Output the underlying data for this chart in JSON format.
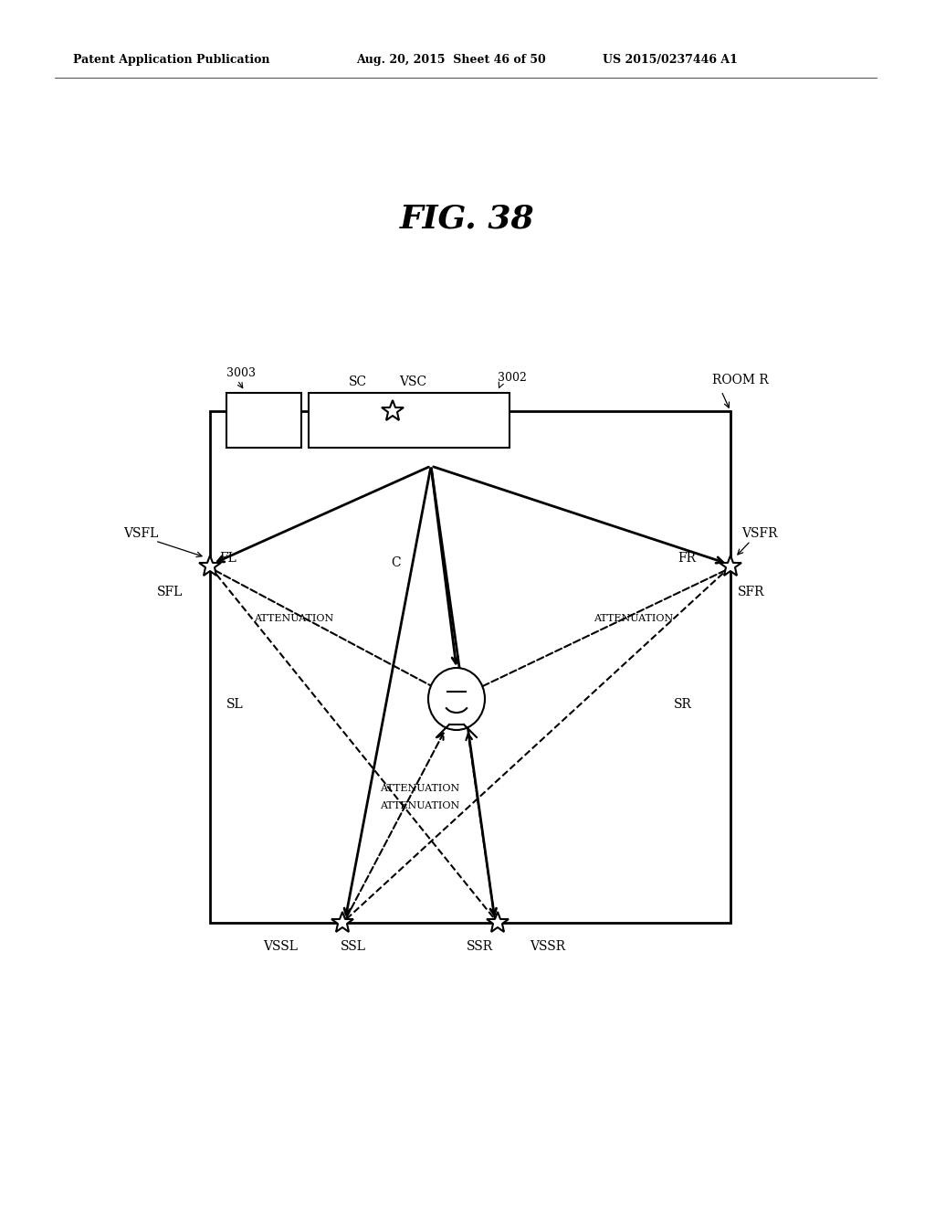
{
  "bg_color": "#ffffff",
  "header_left": "Patent Application Publication",
  "header_mid": "Aug. 20, 2015  Sheet 46 of 50",
  "header_right": "US 2015/0237446 A1",
  "fig_label": "FIG. 38"
}
